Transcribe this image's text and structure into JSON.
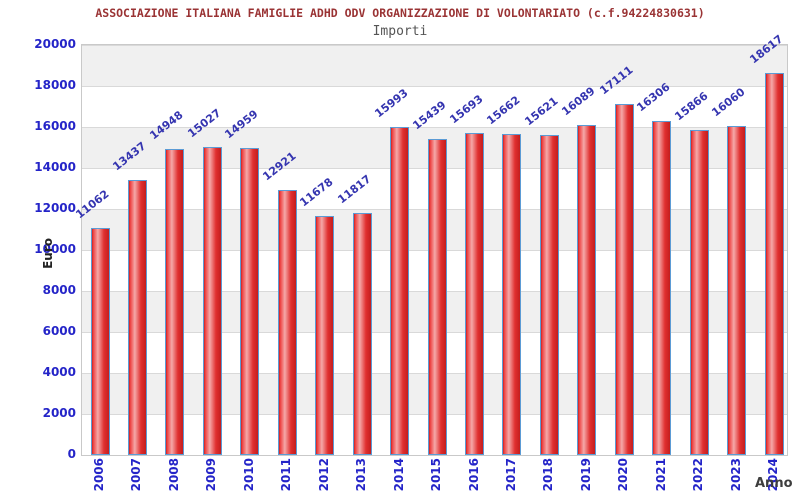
{
  "header": {
    "title": "ASSOCIAZIONE ITALIANA FAMIGLIE ADHD ODV ORGANIZZAZIONE DI VOLONTARIATO (c.f.94224830631)",
    "subtitle": "Importi"
  },
  "chart_data": {
    "type": "bar",
    "title": "ASSOCIAZIONE ITALIANA FAMIGLIE ADHD ODV ORGANIZZAZIONE DI VOLONTARIATO (c.f.94224830631)",
    "subtitle": "Importi",
    "xlabel": "Anno",
    "ylabel": "Euro",
    "categories": [
      "2006",
      "2007",
      "2008",
      "2009",
      "2010",
      "2011",
      "2012",
      "2013",
      "2014",
      "2015",
      "2016",
      "2017",
      "2018",
      "2019",
      "2020",
      "2021",
      "2022",
      "2023",
      "2024"
    ],
    "values": [
      11062,
      13437,
      14948,
      15027,
      14959,
      12921,
      11678,
      11817,
      15993,
      15439,
      15693,
      15662,
      15621,
      16089,
      17111,
      16306,
      15866,
      16060,
      18617
    ],
    "ylim": [
      0,
      20000
    ],
    "ytick_step": 2000,
    "grid": "horizontal-bands",
    "legend_position": "none",
    "colors": {
      "title": "#9a3334",
      "subtitle": "#555555",
      "tick_label": "#2424c8",
      "value_label": "#3535b0",
      "bar_border": "#5b9bd5",
      "bar_fill_main": "#e03030",
      "bar_fill_light": "#f5a8a8",
      "band": "#f0f0f0",
      "gridline": "#d9d9d9",
      "axis_title": "#222222"
    }
  }
}
